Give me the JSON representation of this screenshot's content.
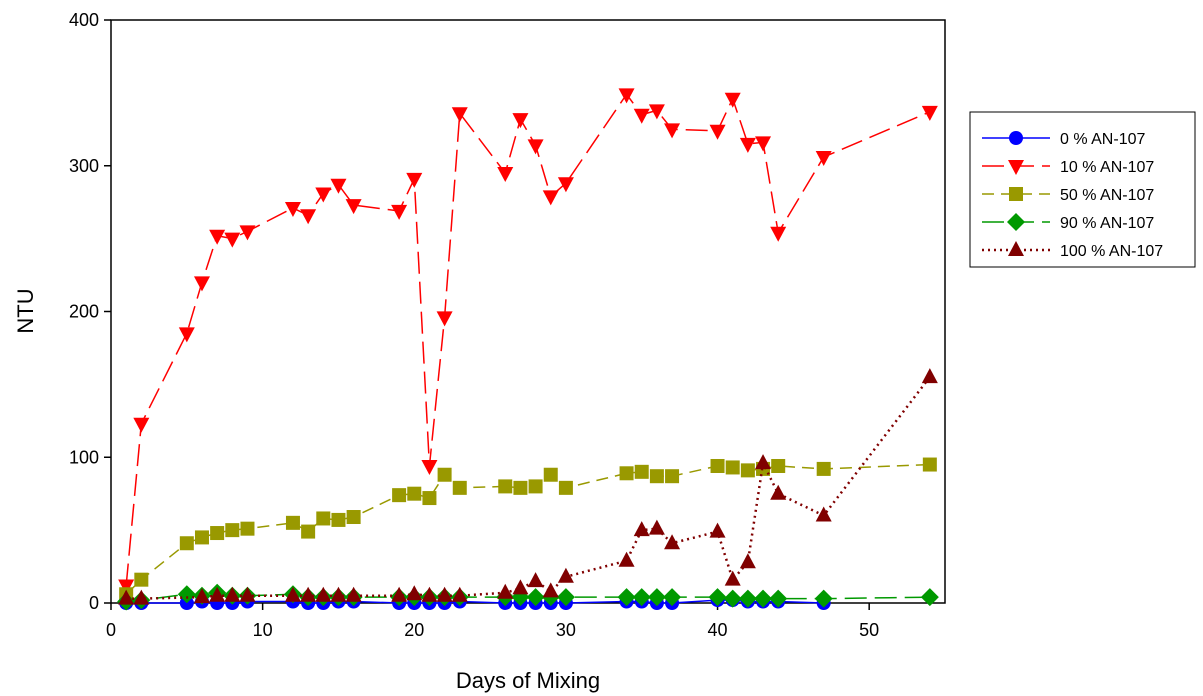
{
  "chart_data": {
    "type": "line",
    "title": "",
    "xlabel": "Days of Mixing",
    "ylabel": "NTU",
    "xlim": [
      0,
      55
    ],
    "ylim": [
      0,
      400
    ],
    "xticks": [
      0,
      10,
      20,
      30,
      40,
      50
    ],
    "yticks": [
      0,
      100,
      200,
      300,
      400
    ],
    "grid": false,
    "legend_position": "right",
    "series": [
      {
        "name": "0 % AN-107",
        "color": "#0000ff",
        "marker": "circle",
        "line_style": "solid",
        "x": [
          1,
          2,
          5,
          6,
          7,
          8,
          9,
          12,
          13,
          14,
          15,
          16,
          19,
          20,
          21,
          22,
          23,
          26,
          27,
          28,
          29,
          30,
          34,
          35,
          36,
          37,
          40,
          41,
          42,
          43,
          44,
          47
        ],
        "y": [
          0,
          0,
          0,
          1,
          0,
          0,
          1,
          1,
          0,
          0,
          1,
          1,
          0,
          0,
          0,
          0,
          1,
          0,
          0,
          0,
          0,
          0,
          1,
          1,
          0,
          0,
          2,
          2,
          1,
          1,
          1,
          0
        ]
      },
      {
        "name": "10 % AN-107",
        "color": "#ff0000",
        "marker": "triangle-down",
        "line_style": "long-dash",
        "x": [
          1,
          2,
          5,
          6,
          7,
          8,
          9,
          12,
          13,
          14,
          15,
          16,
          19,
          20,
          21,
          22,
          23,
          26,
          27,
          28,
          29,
          30,
          34,
          35,
          36,
          37,
          40,
          41,
          42,
          43,
          44,
          47,
          54
        ],
        "y": [
          12,
          123,
          185,
          220,
          252,
          250,
          255,
          271,
          266,
          281,
          287,
          273,
          269,
          291,
          94,
          196,
          336,
          295,
          332,
          314,
          279,
          288,
          349,
          335,
          338,
          325,
          324,
          346,
          315,
          316,
          254,
          306,
          337
        ]
      },
      {
        "name": "50 % AN-107",
        "color": "#999900",
        "marker": "square",
        "line_style": "dash",
        "x": [
          1,
          2,
          5,
          6,
          7,
          8,
          9,
          12,
          13,
          14,
          15,
          16,
          19,
          20,
          21,
          22,
          23,
          26,
          27,
          28,
          29,
          30,
          34,
          35,
          36,
          37,
          40,
          41,
          42,
          43,
          44,
          47,
          54
        ],
        "y": [
          6,
          16,
          41,
          45,
          48,
          50,
          51,
          55,
          49,
          58,
          57,
          59,
          74,
          75,
          72,
          88,
          79,
          80,
          79,
          80,
          88,
          79,
          89,
          90,
          87,
          87,
          94,
          93,
          91,
          92,
          94,
          92,
          95
        ]
      },
      {
        "name": "90 % AN-107",
        "color": "#009900",
        "marker": "diamond",
        "line_style": "long-dash",
        "x": [
          1,
          2,
          5,
          6,
          7,
          8,
          9,
          12,
          13,
          14,
          15,
          16,
          19,
          20,
          21,
          22,
          23,
          26,
          27,
          28,
          29,
          30,
          34,
          35,
          36,
          37,
          40,
          41,
          42,
          43,
          44,
          47,
          54
        ],
        "y": [
          1,
          2,
          6,
          5,
          7,
          5,
          5,
          6,
          4,
          4,
          4,
          4,
          4,
          4,
          4,
          4,
          4,
          4,
          4,
          4,
          4,
          4,
          4,
          4,
          4,
          4,
          4,
          3,
          3,
          3,
          3,
          3,
          4
        ]
      },
      {
        "name": "100 % AN-107",
        "color": "#800000",
        "marker": "triangle-up",
        "line_style": "dotted",
        "x": [
          1,
          2,
          6,
          7,
          8,
          9,
          12,
          13,
          14,
          15,
          16,
          19,
          20,
          21,
          22,
          23,
          26,
          27,
          28,
          29,
          30,
          34,
          35,
          36,
          37,
          40,
          41,
          42,
          43,
          44,
          47,
          54
        ],
        "y": [
          3,
          3,
          4,
          5,
          5,
          5,
          5,
          5,
          5,
          5,
          5,
          5,
          6,
          5,
          5,
          5,
          7,
          10,
          15,
          8,
          18,
          29,
          50,
          51,
          41,
          49,
          16,
          28,
          96,
          75,
          60,
          155
        ]
      }
    ]
  }
}
